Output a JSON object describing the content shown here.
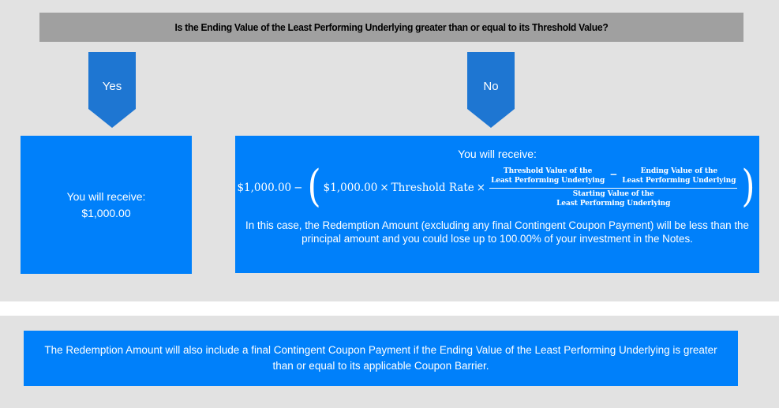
{
  "header": {
    "question": "Is the Ending Value of the Least Performing Underlying greater than or equal to its Threshold Value?"
  },
  "branches": {
    "yes": {
      "arrow_label": "Yes",
      "box": {
        "line1": "You will receive:",
        "line2": "$1,000.00"
      }
    },
    "no": {
      "arrow_label": "No",
      "box": {
        "intro": "You will receive:",
        "formula": {
          "principal": "$1,000.00",
          "minus": "−",
          "open_paren": "(",
          "inner_principal": "$1,000.00",
          "times1": "×",
          "rate_label": "Threshold Rate",
          "times2": "×",
          "fraction": {
            "numerator_left": [
              "Threshold Value of the",
              "Least Performing Underlying"
            ],
            "numerator_minus": "−",
            "numerator_right": [
              "Ending Value of the",
              "Least Performing Underlying"
            ],
            "denominator": [
              "Starting Value of the",
              "Least Performing Underlying"
            ]
          },
          "close_paren": ")"
        },
        "note": "In this case, the Redemption Amount (excluding any final Contingent Coupon Payment) will be less than the principal amount and you could lose up to 100.00% of your investment in the Notes."
      }
    }
  },
  "footer": {
    "note": "The Redemption Amount will also include a final Contingent Coupon Payment if the Ending Value of the Least Performing Underlying is greater than or equal to its applicable Coupon Barrier."
  },
  "colors": {
    "page_background": "#e2e2e2",
    "header_background": "#a0a0a0",
    "arrow_blue": "#1e76d2",
    "box_blue": "#0080fa",
    "text_white": "#ffffff",
    "header_text": "#000000"
  }
}
